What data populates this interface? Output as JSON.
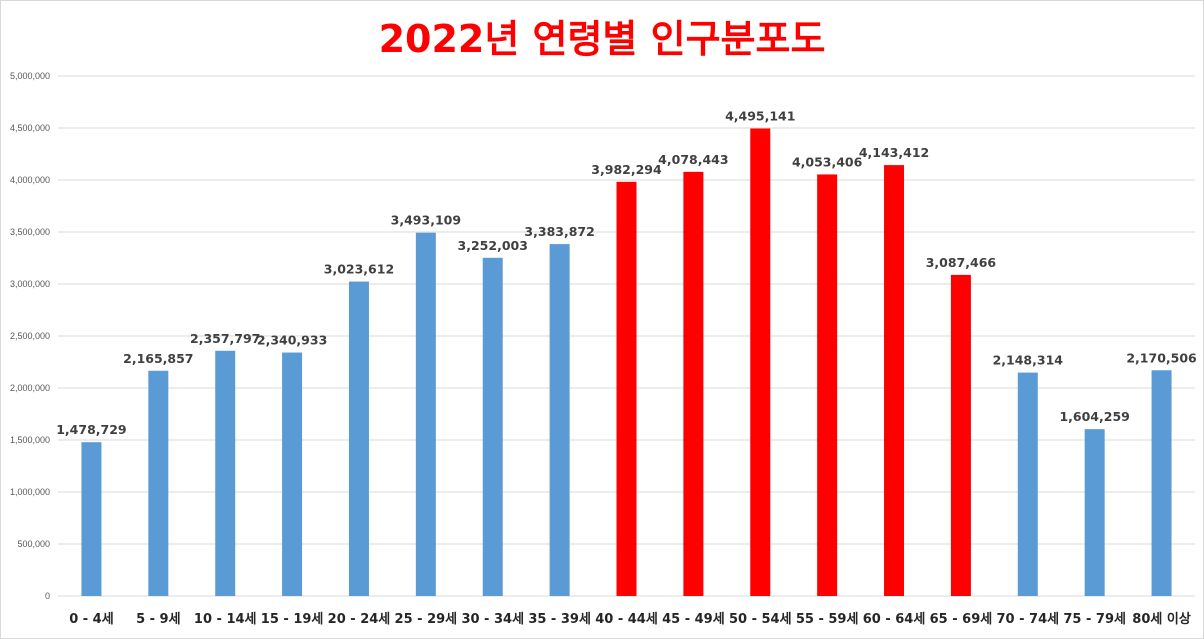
{
  "chart_data": {
    "type": "bar",
    "title": "2022년 연령별 인구분포도",
    "xlabel": "",
    "ylabel": "",
    "categories": [
      "0 - 4세",
      "5 - 9세",
      "10 - 14세",
      "15 - 19세",
      "20 - 24세",
      "25 - 29세",
      "30 - 34세",
      "35 - 39세",
      "40 - 44세",
      "45 - 49세",
      "50 - 54세",
      "55 - 59세",
      "60 - 64세",
      "65 - 69세",
      "70 - 74세",
      "75 - 79세",
      "80세 이상"
    ],
    "values": [
      1478729,
      2165857,
      2357797,
      2340933,
      3023612,
      3493109,
      3252003,
      3383872,
      3982294,
      4078443,
      4495141,
      4053406,
      4143412,
      3087466,
      2148314,
      1604259,
      2170506
    ],
    "value_labels": [
      "1,478,729",
      "2,165,857",
      "2,357,797",
      "2,340,933",
      "3,023,612",
      "3,493,109",
      "3,252,003",
      "3,383,872",
      "3,982,294",
      "4,078,443",
      "4,495,141",
      "4,053,406",
      "4,143,412",
      "3,087,466",
      "2,148,314",
      "1,604,259",
      "2,170,506"
    ],
    "bar_colors": [
      "#5b9bd5",
      "#5b9bd5",
      "#5b9bd5",
      "#5b9bd5",
      "#5b9bd5",
      "#5b9bd5",
      "#5b9bd5",
      "#5b9bd5",
      "#ff0000",
      "#ff0000",
      "#ff0000",
      "#ff0000",
      "#ff0000",
      "#ff0000",
      "#5b9bd5",
      "#5b9bd5",
      "#5b9bd5"
    ],
    "ylim": [
      0,
      5000000
    ],
    "yticks": [
      0,
      500000,
      1000000,
      1500000,
      2000000,
      2500000,
      3000000,
      3500000,
      4000000,
      4500000,
      5000000
    ],
    "ytick_labels": [
      "0",
      "500,000",
      "1,000,000",
      "1,500,000",
      "2,000,000",
      "2,500,000",
      "3,000,000",
      "3,500,000",
      "4,000,000",
      "4,500,000",
      "5,000,000"
    ],
    "grid": true,
    "legend": "none"
  }
}
